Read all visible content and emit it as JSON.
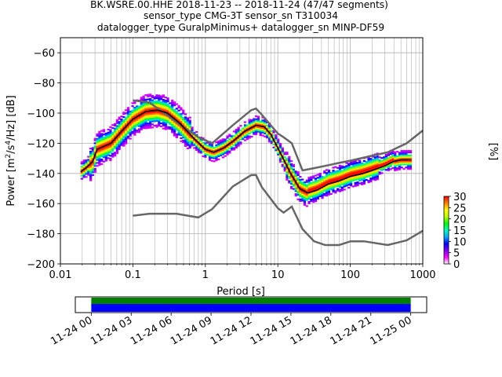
{
  "title_lines": [
    "BK.WSRE.00.HHE   2018-11-23 -- 2018-11-24  (47/47 segments)",
    "sensor_type CMG-3T sensor_sn T310034",
    "datalogger_type GuralpMinimus+ datalogger_sn MINP-DF59"
  ],
  "chart_data": [
    {
      "type": "heatmap",
      "xlabel": "Period [s]",
      "ylabel_parts": {
        "main": "Power [m",
        "exp1": "2",
        "mid": "/s",
        "exp2": "4",
        "tail": "/Hz] [dB]"
      },
      "xscale": "log",
      "xlim": [
        0.01,
        1000
      ],
      "ylim": [
        -200,
        -50
      ],
      "x_tick_values": [
        0.01,
        0.1,
        1,
        10,
        100,
        1000
      ],
      "x_tick_labels": [
        "0.01",
        "0.1",
        "1",
        "10",
        "100",
        "1000"
      ],
      "y_tick_values": [
        -60,
        -80,
        -100,
        -120,
        -140,
        -160,
        -180,
        -200
      ],
      "y_tick_labels": [
        "−60",
        "−80",
        "−100",
        "−120",
        "−140",
        "−160",
        "−180",
        "−200"
      ],
      "grid": true,
      "mean_curve": {
        "color": "#000000",
        "x": [
          0.019,
          0.023,
          0.028,
          0.032,
          0.04,
          0.05,
          0.07,
          0.1,
          0.15,
          0.22,
          0.3,
          0.45,
          0.7,
          1.0,
          1.3,
          1.8,
          2.5,
          3.5,
          5.0,
          6.5,
          8.0,
          11.0,
          15.0,
          20.0,
          26.0,
          35.0,
          50.0,
          70.0,
          100.0,
          150.0,
          200.0,
          300.0,
          400.0,
          500.0,
          680.0
        ],
        "y": [
          -139,
          -136,
          -132,
          -124,
          -122,
          -120,
          -112,
          -104,
          -99,
          -98,
          -100,
          -107,
          -117,
          -124,
          -126,
          -123,
          -118,
          -112,
          -108,
          -109,
          -114,
          -127,
          -140,
          -150,
          -153,
          -151,
          -147,
          -145,
          -142,
          -140,
          -138,
          -135,
          -132,
          -131,
          -131
        ]
      },
      "noise_models": [
        {
          "name": "high",
          "color": "#666666",
          "x": [
            0.1,
            0.17,
            0.4,
            0.8,
            1.24,
            2.4,
            4.3,
            5.0,
            6.0,
            10.0,
            12.0,
            15.6,
            21.9,
            31.6,
            45.0,
            70.0,
            101.0,
            154.0,
            328.0,
            600.0,
            1000.0
          ],
          "y": [
            -91.5,
            -93.0,
            -106.0,
            -116.0,
            -120.0,
            -108.0,
            -98.0,
            -97.0,
            -101.0,
            -113.5,
            -116.0,
            -120.0,
            -138.0,
            -136.5,
            -135.0,
            -133.0,
            -131.5,
            -129.5,
            -126.0,
            -120.0,
            -111.5
          ]
        },
        {
          "name": "low",
          "color": "#666666",
          "x": [
            0.1,
            0.17,
            0.4,
            0.8,
            1.24,
            2.4,
            4.3,
            5.0,
            6.0,
            10.0,
            12.0,
            15.6,
            21.9,
            31.6,
            45.0,
            70.0,
            101.0,
            154.0,
            328.0,
            600.0,
            1000.0
          ],
          "y": [
            -168.0,
            -166.7,
            -166.7,
            -169.2,
            -163.7,
            -148.6,
            -141.1,
            -141.1,
            -149.0,
            -163.0,
            -166.0,
            -162.0,
            -177.0,
            -185.0,
            -187.5,
            -187.5,
            -185.0,
            -185.0,
            -187.5,
            -184.4,
            -178.0
          ]
        }
      ],
      "colorbar": {
        "label": "[%]",
        "ticks": [
          0,
          5,
          10,
          15,
          20,
          25,
          30
        ],
        "range": [
          0,
          30
        ],
        "colormap": [
          "#ffffff",
          "#ff00ff",
          "#8000ff",
          "#0000ff",
          "#00b0ff",
          "#00ffc0",
          "#00ff00",
          "#c0ff00",
          "#ffff00",
          "#ff8000",
          "#ff0000"
        ]
      }
    },
    {
      "type": "timeline",
      "tick_labels": [
        "11-24 00",
        "11-24 03",
        "11-24 06",
        "11-24 09",
        "11-24 12",
        "11-24 15",
        "11-24 18",
        "11-24 21",
        "11-25 00"
      ],
      "tick_hours": [
        0,
        3,
        6,
        9,
        12,
        15,
        18,
        21,
        24
      ],
      "range_hours": [
        -1.2,
        25.2
      ],
      "bars": [
        {
          "color": "#008000",
          "start": 0,
          "end": 24
        },
        {
          "color": "#0000ff",
          "start": 0,
          "end": 24
        }
      ]
    }
  ]
}
